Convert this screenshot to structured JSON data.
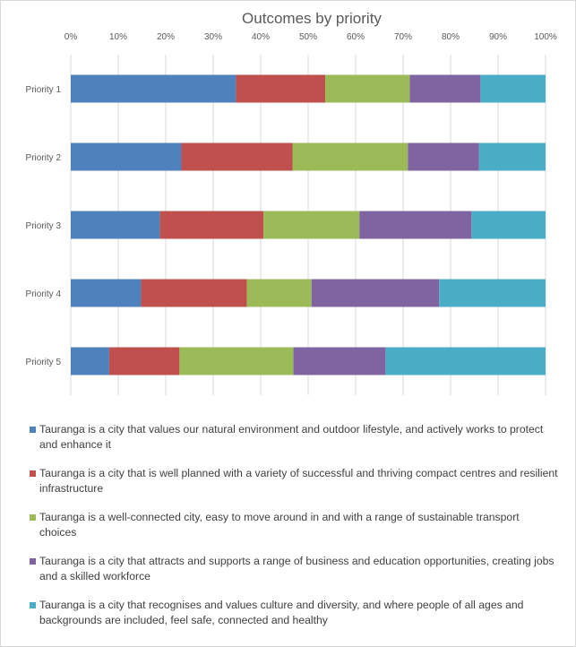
{
  "chart_data": {
    "type": "bar",
    "orientation": "horizontal",
    "stacked": "percent",
    "title": "Outcomes by priority",
    "categories": [
      "Priority 1",
      "Priority 2",
      "Priority 3",
      "Priority 4",
      "Priority 5"
    ],
    "x_ticks": [
      "0%",
      "10%",
      "20%",
      "30%",
      "40%",
      "50%",
      "60%",
      "70%",
      "80%",
      "90%",
      "100%"
    ],
    "xlim": [
      0,
      100
    ],
    "grid": true,
    "legend_position": "bottom",
    "series": [
      {
        "name": "Tauranga is a city that values our natural environment and outdoor lifestyle, and actively works to protect and enhance it",
        "color": "#4f81bd",
        "values": [
          34.8,
          23.3,
          18.8,
          14.8,
          8.1
        ]
      },
      {
        "name": "Tauranga is a city that is well planned with a variety of successful and thriving compact centres and resilient infrastructure",
        "color": "#c0504d",
        "values": [
          18.8,
          23.4,
          21.8,
          22.3,
          14.8
        ]
      },
      {
        "name": "Tauranga is a well-connected city, easy to move around in and with a range of sustainable transport choices",
        "color": "#9bbb59",
        "values": [
          17.8,
          24.3,
          20.2,
          13.6,
          24.0
        ]
      },
      {
        "name": "Tauranga is a city that attracts and supports a range of business and education opportunities, creating jobs and a skilled workforce",
        "color": "#8064a2",
        "values": [
          14.9,
          15.0,
          23.6,
          26.9,
          19.4
        ]
      },
      {
        "name": "Tauranga is a city that recognises and values culture and diversity, and where people of all ages and backgrounds are included, feel safe, connected and healthy",
        "color": "#4bacc6",
        "values": [
          13.7,
          14.0,
          15.6,
          22.4,
          33.7
        ]
      }
    ]
  }
}
